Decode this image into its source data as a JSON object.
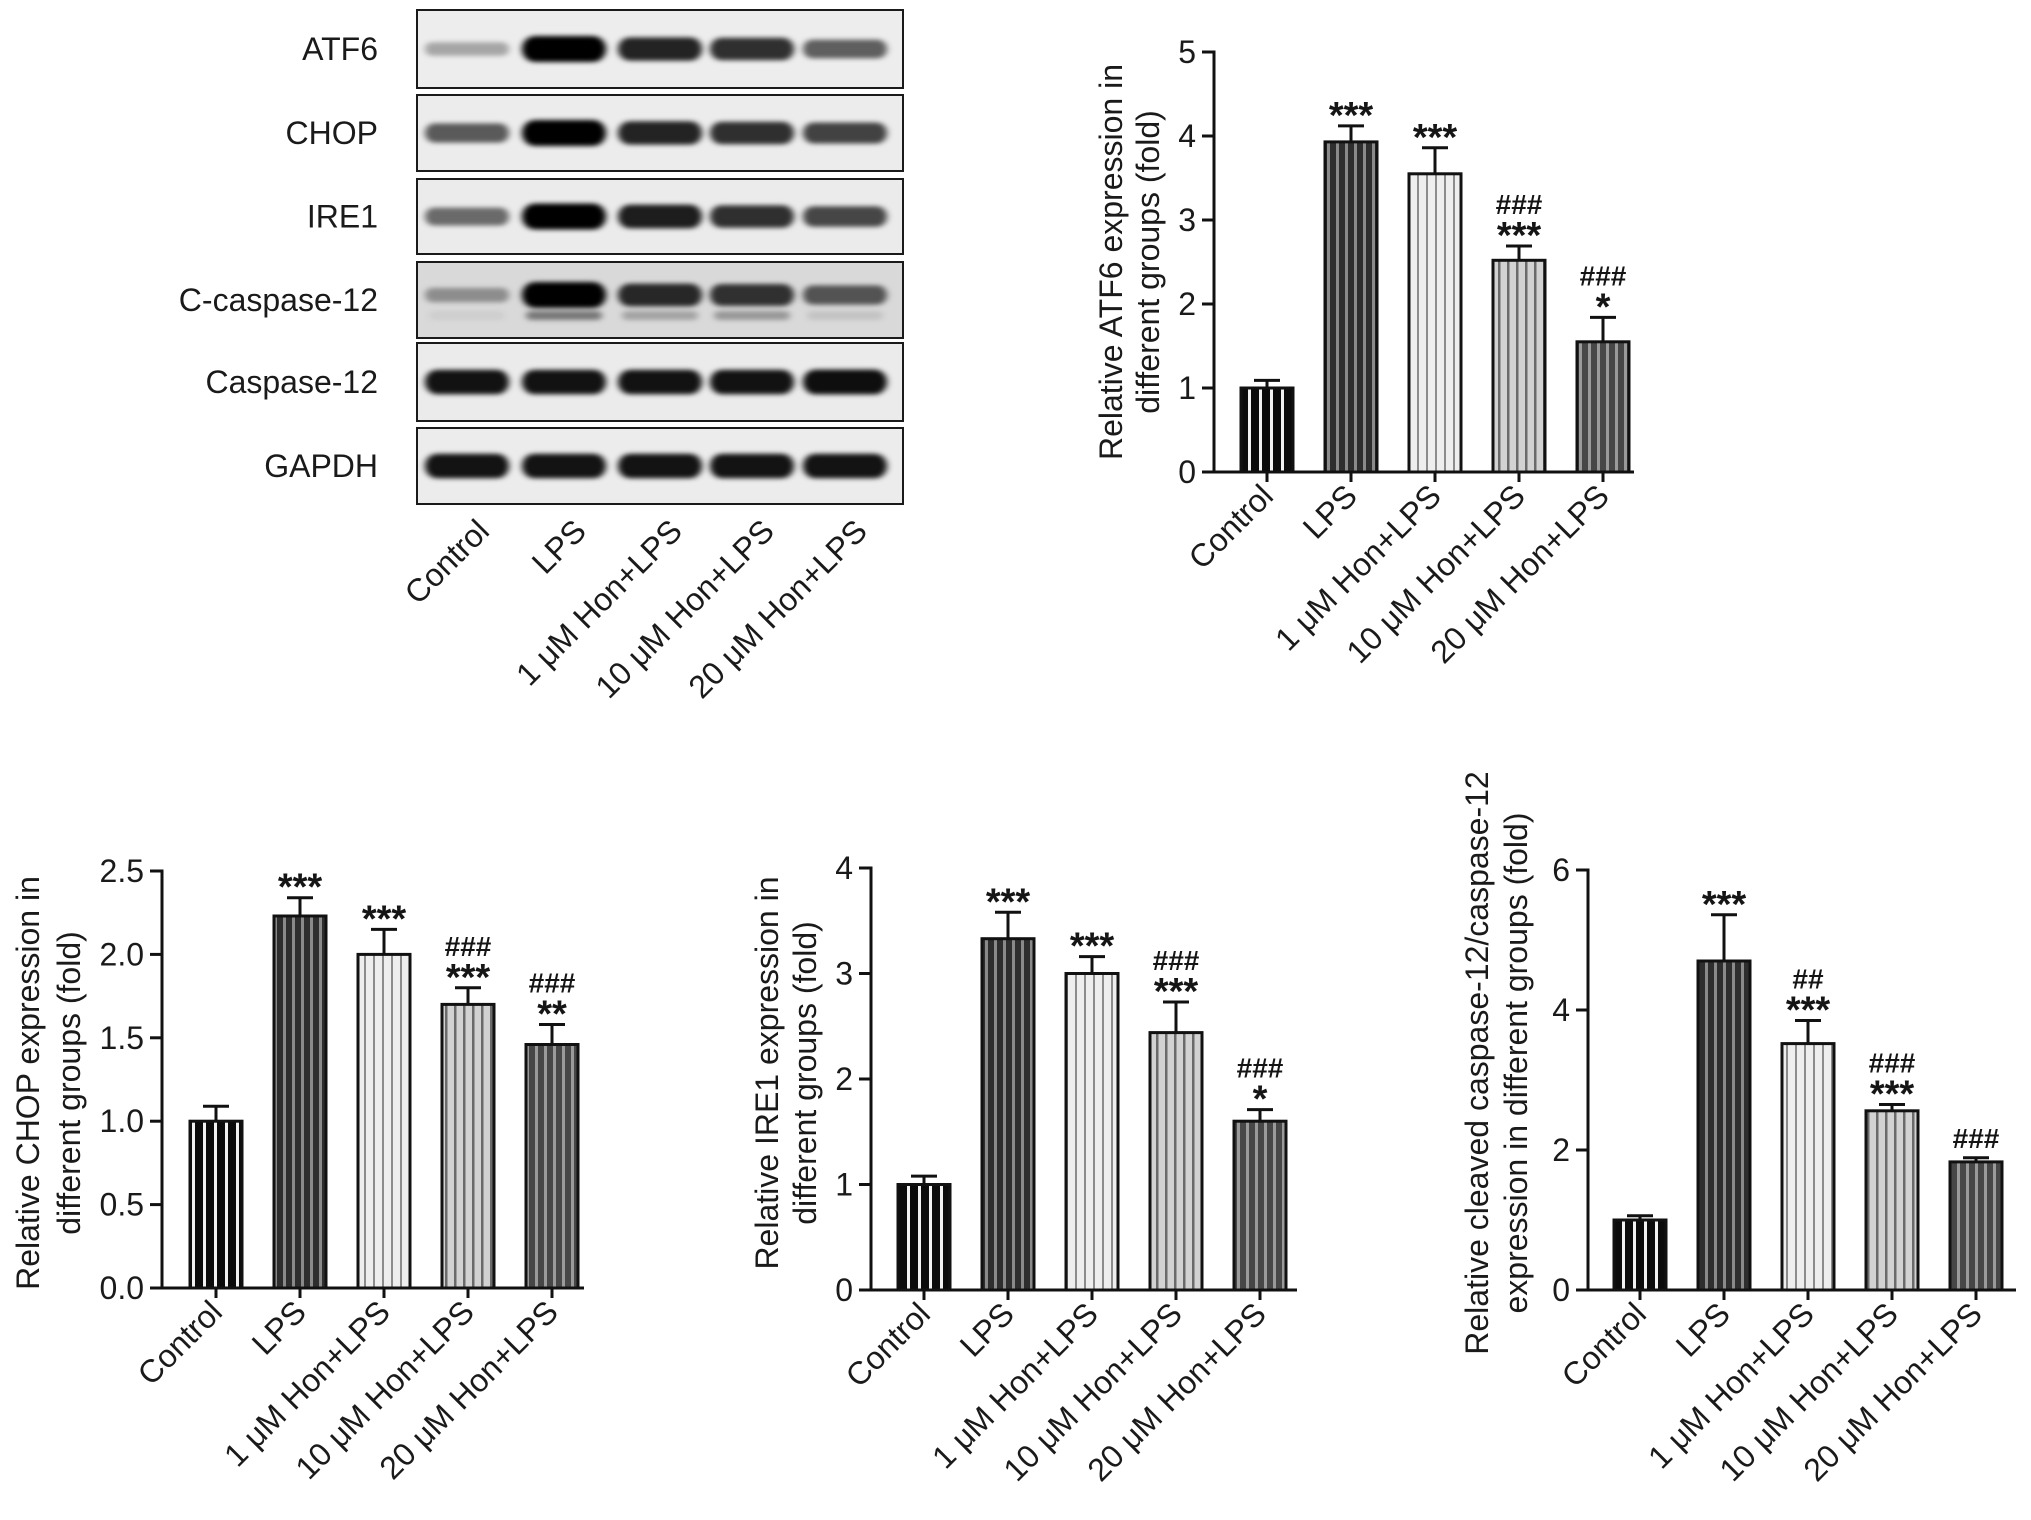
{
  "blot": {
    "rows": [
      {
        "label": "ATF6",
        "band_intensity": [
          0.3,
          1.0,
          0.85,
          0.8,
          0.6
        ]
      },
      {
        "label": "CHOP",
        "band_intensity": [
          0.62,
          1.0,
          0.85,
          0.8,
          0.72
        ]
      },
      {
        "label": "IRE1",
        "band_intensity": [
          0.55,
          1.0,
          0.88,
          0.8,
          0.7
        ]
      },
      {
        "label": "C-caspase-12",
        "band_intensity": [
          0.35,
          1.0,
          0.82,
          0.78,
          0.62
        ],
        "lower_band_intensity": [
          0.05,
          0.45,
          0.25,
          0.3,
          0.1
        ]
      },
      {
        "label": "Caspase-12",
        "band_intensity": [
          0.92,
          0.92,
          0.92,
          0.92,
          0.94
        ]
      },
      {
        "label": "GAPDH",
        "band_intensity": [
          0.92,
          0.92,
          0.92,
          0.92,
          0.92
        ]
      }
    ],
    "lanes": [
      "Control",
      "LPS",
      "1 μM Hon+LPS",
      "10 μM Hon+LPS",
      "20 μM Hon+LPS"
    ]
  },
  "chart_data": [
    {
      "type": "bar",
      "categories": [
        "Control",
        "LPS",
        "1 μM Hon+LPS",
        "10 μM Hon+LPS",
        "20 μM Hon+LPS"
      ],
      "values": [
        1.0,
        3.93,
        3.55,
        2.52,
        1.55
      ],
      "errors": [
        0.09,
        0.19,
        0.31,
        0.17,
        0.29
      ],
      "annotations": [
        [],
        [
          "***"
        ],
        [
          "***"
        ],
        [
          "###",
          "***"
        ],
        [
          "###",
          "*"
        ]
      ],
      "ylabel": [
        "Relative ATF6 expression in",
        "different groups (fold)"
      ],
      "ylim": [
        0,
        5
      ],
      "yticks": [
        "0",
        "1",
        "2",
        "3",
        "4",
        "5"
      ]
    },
    {
      "type": "bar",
      "categories": [
        "Control",
        "LPS",
        "1 μM Hon+LPS",
        "10 μM Hon+LPS",
        "20 μM Hon+LPS"
      ],
      "values": [
        1.0,
        2.23,
        2.0,
        1.7,
        1.46
      ],
      "errors": [
        0.09,
        0.11,
        0.15,
        0.1,
        0.12
      ],
      "annotations": [
        [],
        [
          "***"
        ],
        [
          "***"
        ],
        [
          "###",
          "***"
        ],
        [
          "###",
          "**"
        ]
      ],
      "ylabel": [
        "Relative CHOP expression in",
        "different groups (fold)"
      ],
      "ylim": [
        0,
        2.5
      ],
      "yticks": [
        "0.0",
        "0.5",
        "1.0",
        "1.5",
        "2.0",
        "2.5"
      ]
    },
    {
      "type": "bar",
      "categories": [
        "Control",
        "LPS",
        "1 μM Hon+LPS",
        "10 μM Hon+LPS",
        "20 μM Hon+LPS"
      ],
      "values": [
        1.0,
        3.33,
        3.0,
        2.44,
        1.6
      ],
      "errors": [
        0.08,
        0.25,
        0.16,
        0.29,
        0.11
      ],
      "annotations": [
        [],
        [
          "***"
        ],
        [
          "***"
        ],
        [
          "###",
          "***"
        ],
        [
          "###",
          "*"
        ]
      ],
      "ylabel": [
        "Relative IRE1 expression in",
        "different groups (fold)"
      ],
      "ylim": [
        0,
        4
      ],
      "yticks": [
        "0",
        "1",
        "2",
        "3",
        "4"
      ]
    },
    {
      "type": "bar",
      "categories": [
        "Control",
        "LPS",
        "1 μM Hon+LPS",
        "10 μM Hon+LPS",
        "20 μM Hon+LPS"
      ],
      "values": [
        1.0,
        4.7,
        3.52,
        2.56,
        1.83
      ],
      "errors": [
        0.06,
        0.66,
        0.33,
        0.09,
        0.06
      ],
      "annotations": [
        [],
        [
          "***"
        ],
        [
          "##",
          "***"
        ],
        [
          "###",
          "***"
        ],
        [
          "###"
        ]
      ],
      "ylabel": [
        "Relative cleaved caspase-12/caspase-12",
        "expression in different groups (fold)"
      ],
      "ylim": [
        0,
        6
      ],
      "yticks": [
        "0",
        "2",
        "4",
        "6"
      ]
    }
  ]
}
